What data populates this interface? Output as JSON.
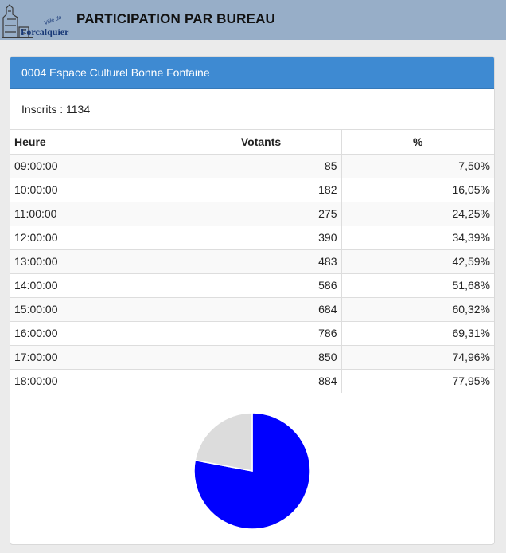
{
  "header": {
    "logo_small": "Ville de",
    "logo_big": "Forcalquier",
    "title": "PARTICIPATION PAR BUREAU"
  },
  "panel": {
    "title": "0004 Espace Culturel Bonne Fontaine",
    "inscrits": "Inscrits : 1134"
  },
  "table": {
    "columns": [
      "Heure",
      "Votants",
      "%"
    ],
    "rows": [
      [
        "09:00:00",
        "85",
        "7,50%"
      ],
      [
        "10:00:00",
        "182",
        "16,05%"
      ],
      [
        "11:00:00",
        "275",
        "24,25%"
      ],
      [
        "12:00:00",
        "390",
        "34,39%"
      ],
      [
        "13:00:00",
        "483",
        "42,59%"
      ],
      [
        "14:00:00",
        "586",
        "51,68%"
      ],
      [
        "15:00:00",
        "684",
        "60,32%"
      ],
      [
        "16:00:00",
        "786",
        "69,31%"
      ],
      [
        "17:00:00",
        "850",
        "74,96%"
      ],
      [
        "18:00:00",
        "884",
        "77,95%"
      ]
    ]
  },
  "chart_data": {
    "type": "pie",
    "values": [
      77.95,
      22.05
    ],
    "colors": [
      "#0000ff",
      "#dcdcdc"
    ]
  }
}
